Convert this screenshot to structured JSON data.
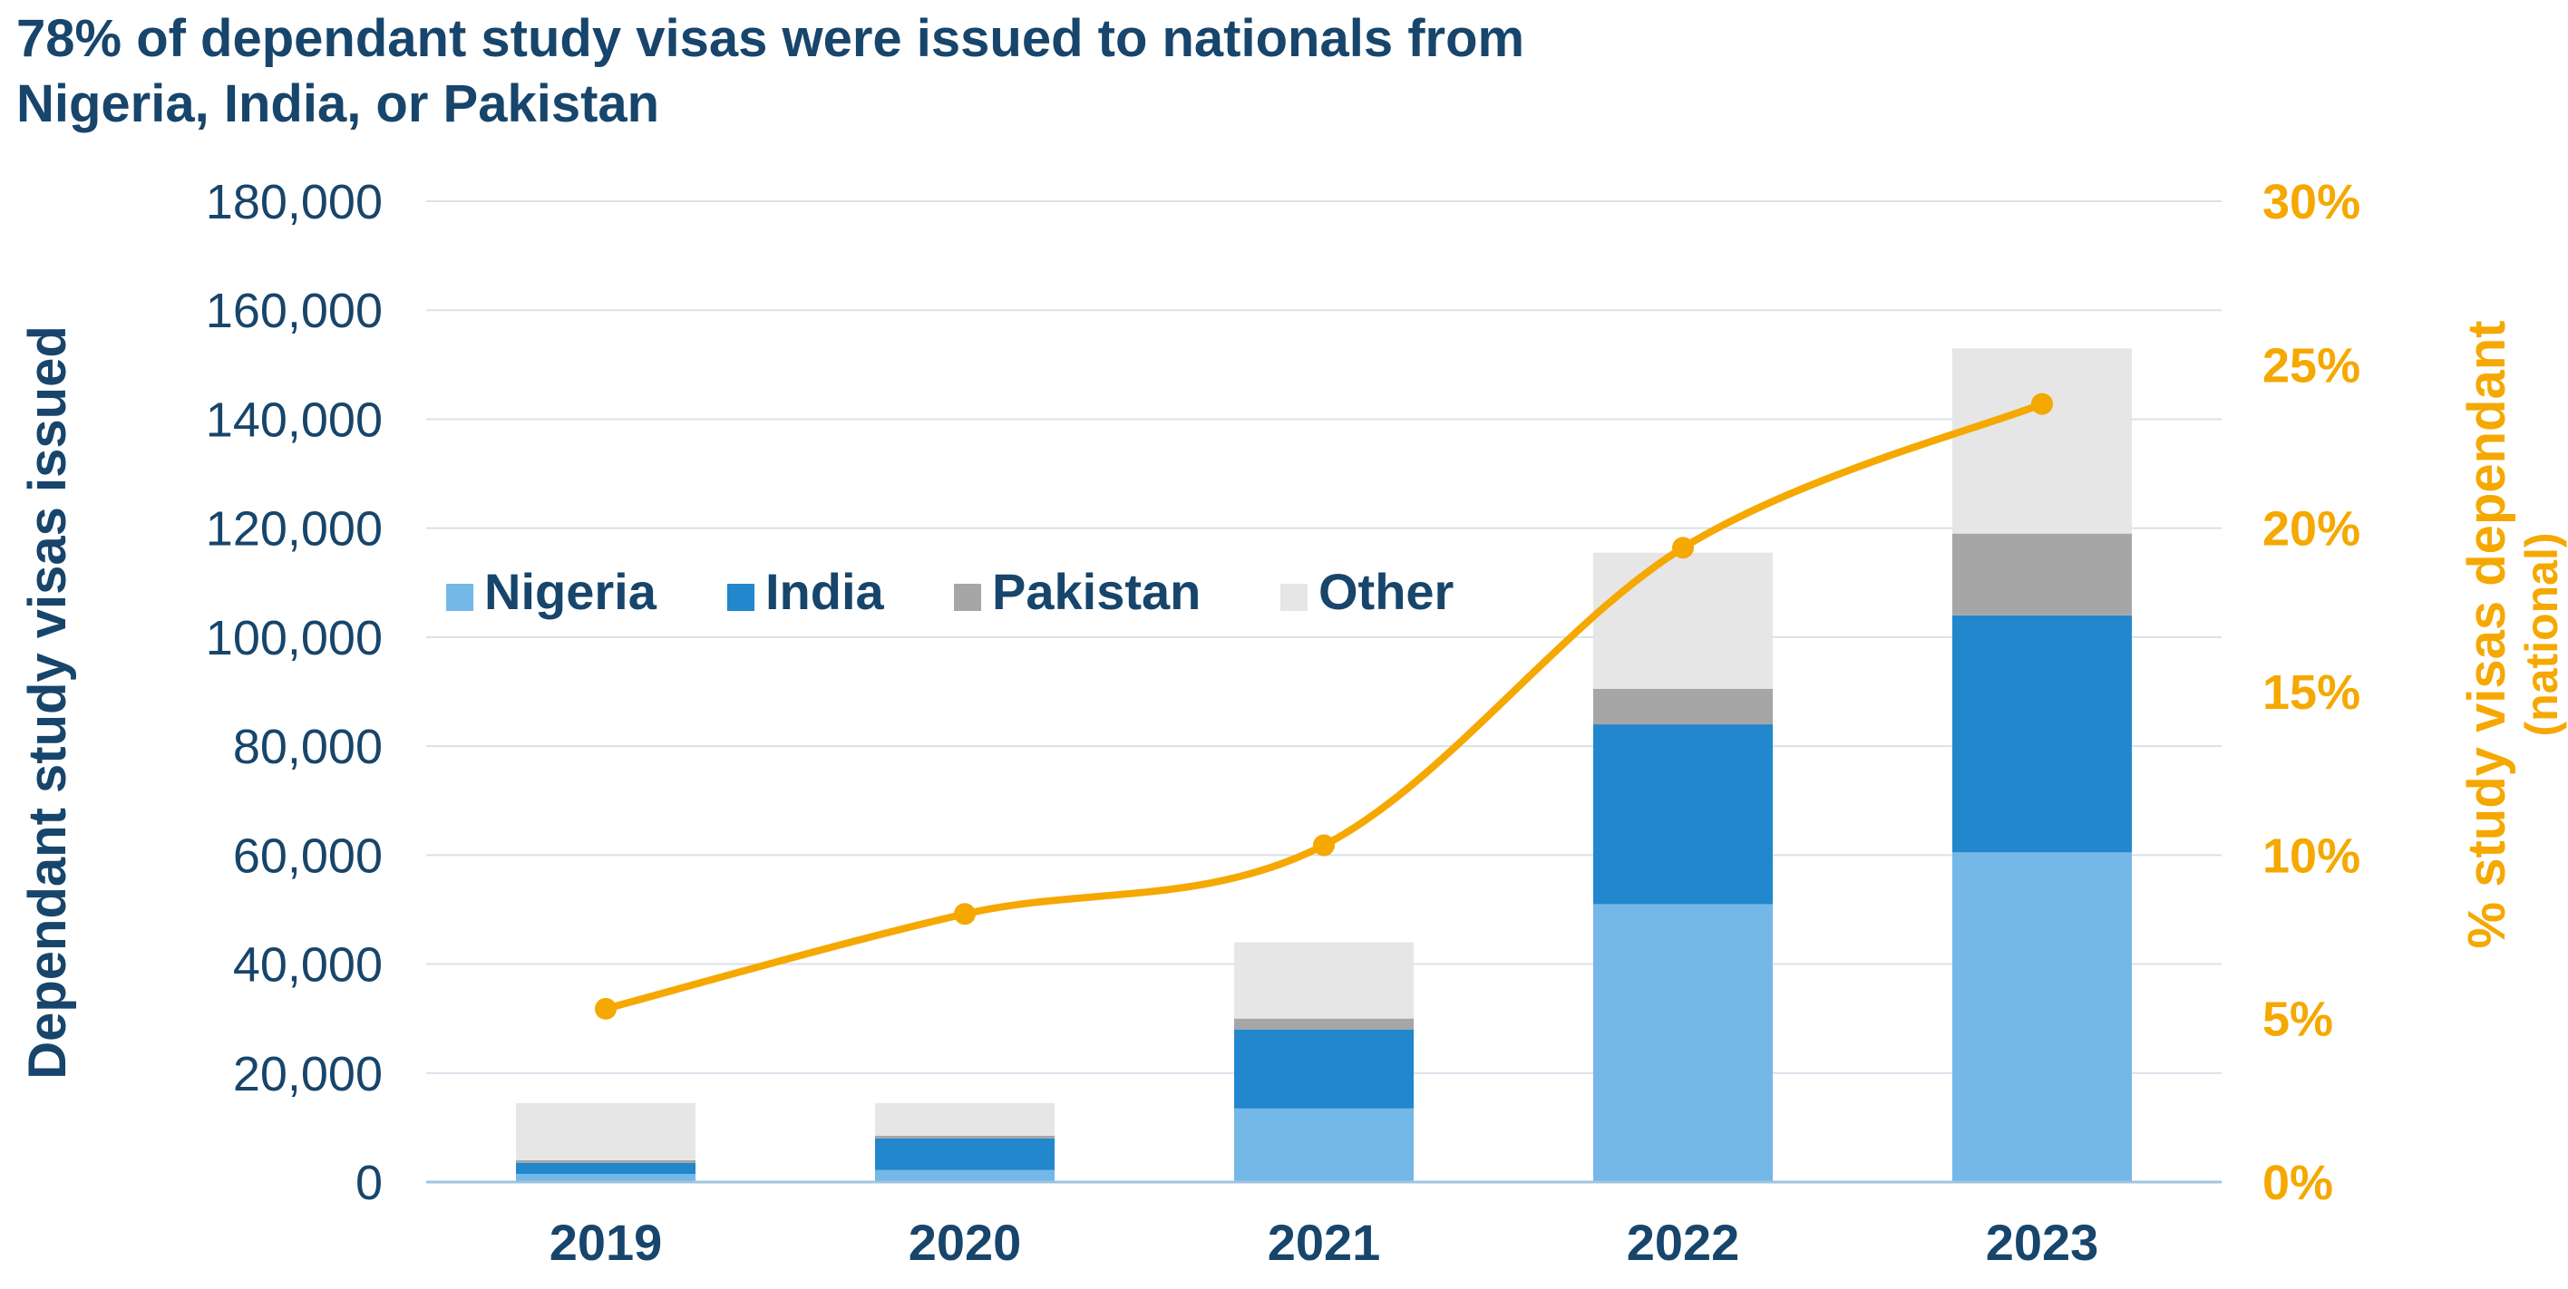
{
  "chart_data": {
    "type": "bar",
    "stacked": true,
    "title_lines": [
      "78% of dependant study visas were issued to nationals from",
      "Nigeria, India, or Pakistan"
    ],
    "ylabel": "Dependant study visas issued",
    "y2label": "% study visas dependant",
    "y2label_sub": "(national)",
    "categories": [
      "2019",
      "2020",
      "2021",
      "2022",
      "2023"
    ],
    "ylim": [
      0,
      180000
    ],
    "y_ticks": [
      "0",
      "20,000",
      "40,000",
      "60,000",
      "80,000",
      "100,000",
      "120,000",
      "140,000",
      "160,000",
      "180,000"
    ],
    "y2lim": [
      0,
      30
    ],
    "y2_ticks": [
      "0%",
      "5%",
      "10%",
      "15%",
      "20%",
      "25%",
      "30%"
    ],
    "series": [
      {
        "name": "Nigeria",
        "color": "#74b8e8",
        "values": [
          1500,
          2200,
          13500,
          51000,
          60500
        ]
      },
      {
        "name": "India",
        "color": "#2287cd",
        "values": [
          2000,
          5800,
          14500,
          33000,
          43500
        ]
      },
      {
        "name": "Pakistan",
        "color": "#a6a6a6",
        "values": [
          500,
          500,
          2000,
          6500,
          15000
        ]
      },
      {
        "name": "Other",
        "color": "#e6e6e6",
        "values": [
          10500,
          6000,
          14000,
          25000,
          34000
        ]
      }
    ],
    "line": {
      "color": "#f5a800",
      "axis": "y2",
      "values": [
        5.3,
        8.2,
        10.3,
        19.4,
        23.8
      ]
    },
    "legend_position": "center-left",
    "grid": true
  }
}
